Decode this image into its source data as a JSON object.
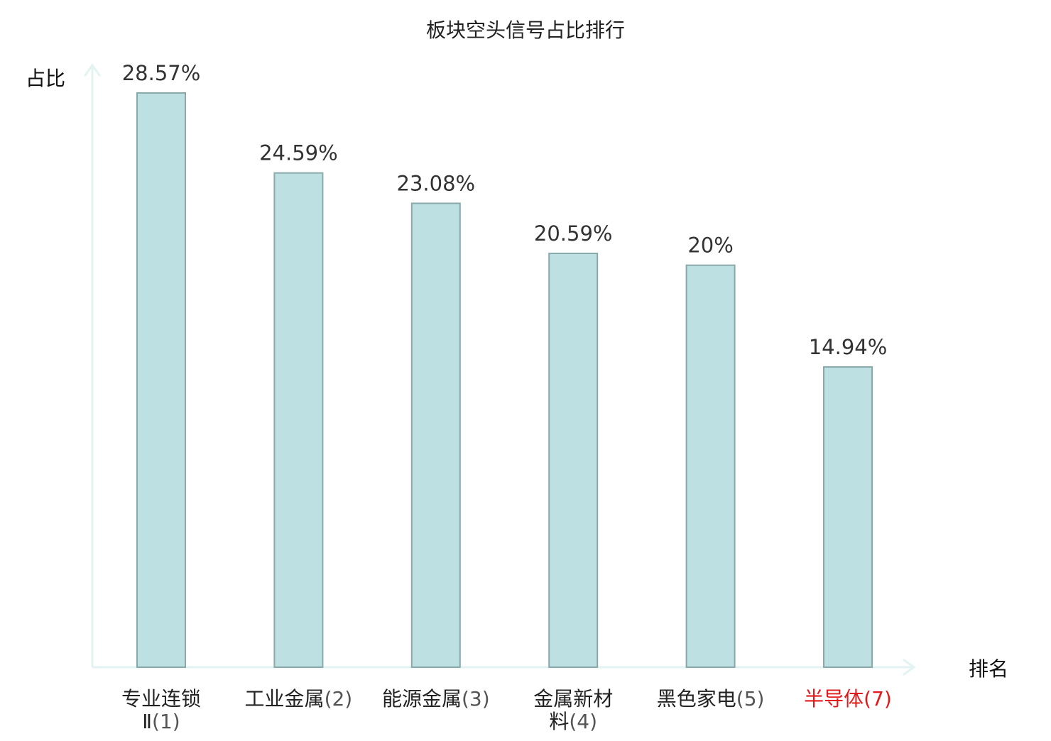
{
  "chart_data": {
    "type": "bar",
    "title": "板块空头信号占比排行",
    "ylabel": "占比",
    "xlabel": "排名",
    "ylim": [
      0,
      30
    ],
    "grid": false,
    "legend": "none",
    "categories": [
      {
        "name_lines": [
          "专业连锁",
          "Ⅱ"
        ],
        "rank": "(1)",
        "highlight": false
      },
      {
        "name_lines": [
          "工业金属"
        ],
        "rank": "(2)",
        "highlight": false
      },
      {
        "name_lines": [
          "能源金属"
        ],
        "rank": "(3)",
        "highlight": false
      },
      {
        "name_lines": [
          "金属新材",
          "料"
        ],
        "rank": "(4)",
        "highlight": false
      },
      {
        "name_lines": [
          "黑色家电"
        ],
        "rank": "(5)",
        "highlight": false
      },
      {
        "name_lines": [
          "半导体"
        ],
        "rank": "(7)",
        "highlight": true
      }
    ],
    "values": [
      28.57,
      24.59,
      23.08,
      20.59,
      20,
      14.94
    ],
    "value_labels": [
      "28.57%",
      "24.59%",
      "23.08%",
      "20.59%",
      "20%",
      "14.94%"
    ]
  },
  "colors": {
    "bar_fill": "#bde0e3",
    "bar_stroke": "#8aa9aa",
    "axis": "#e3f3f1",
    "highlight_label": "#e31a1c",
    "text": "#222222"
  }
}
